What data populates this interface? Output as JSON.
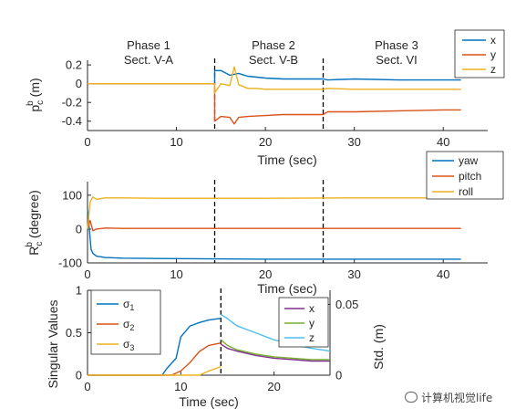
{
  "colors": {
    "blue": "#0072BD",
    "orange": "#D95319",
    "yellow": "#EDB120",
    "purple": "#7E2F8E",
    "green": "#77AC30",
    "cyan": "#4DBEEE"
  },
  "watermark": "计算机视觉life",
  "chart_data": [
    {
      "type": "line",
      "ylabel_main": "p",
      "ylabel_sub": "c",
      "ylabel_sup": "b",
      "ylabel_unit": "(m)",
      "xlabel": "Time (sec)",
      "xlim": [
        0,
        45
      ],
      "ylim": [
        -0.5,
        0.25
      ],
      "xticks": [
        "0",
        "10",
        "20",
        "30",
        "40"
      ],
      "yticks": [
        "0.2",
        "0",
        "-0.2",
        "-0.4"
      ],
      "phases": [
        {
          "name": "Phase 1",
          "sect": "Sect. V-A"
        },
        {
          "name": "Phase 2",
          "sect": "Sect. V-B"
        },
        {
          "name": "Phase 3",
          "sect": "Sect. VI"
        }
      ],
      "vlines": [
        14.3,
        26.5
      ],
      "legend": "top-right",
      "series": [
        {
          "name": "x",
          "color": "#0072BD",
          "x": [
            0,
            14.3,
            14.3,
            15,
            16,
            17,
            18,
            19,
            20,
            22,
            24,
            26.5,
            27,
            30,
            35,
            40,
            42
          ],
          "y": [
            0,
            0,
            0.14,
            0.14,
            0.09,
            0.11,
            0.08,
            0.07,
            0.06,
            0.05,
            0.05,
            0.05,
            0.04,
            0.05,
            0.04,
            0.04,
            0.04
          ]
        },
        {
          "name": "y",
          "color": "#D95319",
          "x": [
            0,
            14.3,
            14.3,
            15,
            16,
            16.5,
            17,
            18,
            20,
            22,
            24,
            26.5,
            27,
            30,
            35,
            40,
            42
          ],
          "y": [
            0,
            0,
            -0.4,
            -0.35,
            -0.36,
            -0.43,
            -0.36,
            -0.35,
            -0.34,
            -0.33,
            -0.33,
            -0.33,
            -0.3,
            -0.3,
            -0.29,
            -0.28,
            -0.28
          ]
        },
        {
          "name": "z",
          "color": "#EDB120",
          "x": [
            0,
            14.3,
            14.3,
            15,
            16,
            16.5,
            17,
            18,
            19,
            20,
            22,
            24,
            26.5,
            27,
            30,
            35,
            40,
            42
          ],
          "y": [
            0,
            0,
            -0.1,
            0.0,
            -0.02,
            0.18,
            -0.01,
            -0.05,
            -0.05,
            -0.06,
            -0.06,
            -0.06,
            -0.06,
            -0.05,
            -0.06,
            -0.06,
            -0.06,
            -0.06
          ]
        }
      ]
    },
    {
      "type": "line",
      "ylabel_main": "R",
      "ylabel_sub": "c",
      "ylabel_sup": "b",
      "ylabel_unit": "(degree)",
      "xlabel": "Time (sec)",
      "xlim": [
        0,
        45
      ],
      "ylim": [
        -100,
        140
      ],
      "xticks": [
        "0",
        "10",
        "20",
        "30",
        "40"
      ],
      "yticks": [
        "100",
        "0",
        "-100"
      ],
      "vlines": [
        14.3,
        26.5
      ],
      "legend": "top-right",
      "series": [
        {
          "name": "yaw",
          "color": "#0072BD",
          "x": [
            0,
            0.2,
            0.4,
            0.6,
            1,
            2,
            4,
            8,
            14,
            20,
            30,
            42
          ],
          "y": [
            60,
            0,
            -60,
            -72,
            -80,
            -84,
            -86,
            -87,
            -88,
            -89,
            -89,
            -89
          ]
        },
        {
          "name": "pitch",
          "color": "#D95319",
          "x": [
            0,
            0.3,
            0.6,
            1,
            2,
            4,
            8,
            14,
            20,
            30,
            42
          ],
          "y": [
            0,
            25,
            -5,
            0,
            3,
            2,
            2,
            2,
            2,
            2,
            2
          ]
        },
        {
          "name": "roll",
          "color": "#EDB120",
          "x": [
            0,
            0.3,
            0.6,
            1,
            2,
            4,
            8,
            14,
            20,
            30,
            42
          ],
          "y": [
            0,
            80,
            95,
            88,
            92,
            92,
            91,
            91,
            91,
            92,
            92
          ]
        }
      ]
    },
    {
      "type": "line",
      "ylabel": "Singular Values",
      "ylabel_right": "Std. (m)",
      "xlabel": "Time (sec)",
      "xlim": [
        0,
        26
      ],
      "ylim": [
        0,
        1
      ],
      "ylim_right": [
        0,
        0.06
      ],
      "xticks": [
        "0",
        "10",
        "20"
      ],
      "yticks": [
        "1",
        "0.5",
        "0"
      ],
      "yticks_right": [
        "0.05",
        "0"
      ],
      "vlines": [
        14.3
      ],
      "legend_left": "top-left",
      "legend_right": "top-right",
      "series": [
        {
          "name": "σ1",
          "label_main": "σ",
          "label_sub": "1",
          "color": "#0072BD",
          "axis": "left",
          "x": [
            0,
            8,
            8.5,
            9.5,
            10,
            11,
            12,
            13,
            14.3
          ],
          "y": [
            0,
            0,
            0.08,
            0.2,
            0.45,
            0.58,
            0.62,
            0.65,
            0.67
          ]
        },
        {
          "name": "σ2",
          "label_main": "σ",
          "label_sub": "2",
          "color": "#D95319",
          "axis": "left",
          "x": [
            0,
            9,
            10,
            11,
            12,
            13,
            14.3
          ],
          "y": [
            0,
            0,
            0.05,
            0.15,
            0.28,
            0.35,
            0.38
          ]
        },
        {
          "name": "σ3",
          "label_main": "σ",
          "label_sub": "3",
          "color": "#EDB120",
          "axis": "left",
          "x": [
            0,
            12,
            13,
            14.3
          ],
          "y": [
            0,
            0,
            0.05,
            0.1
          ]
        },
        {
          "name": "x",
          "color": "#7E2F8E",
          "axis": "right",
          "x": [
            14.3,
            15,
            16,
            18,
            20,
            22,
            24,
            26
          ],
          "y": [
            0.022,
            0.019,
            0.017,
            0.014,
            0.012,
            0.011,
            0.01,
            0.01
          ]
        },
        {
          "name": "y",
          "color": "#77AC30",
          "axis": "right",
          "x": [
            14.3,
            15,
            16,
            18,
            20,
            22,
            24,
            26
          ],
          "y": [
            0.025,
            0.021,
            0.018,
            0.015,
            0.013,
            0.012,
            0.011,
            0.011
          ]
        },
        {
          "name": "z",
          "color": "#4DBEEE",
          "axis": "right",
          "x": [
            14.3,
            15,
            16,
            18,
            20,
            22,
            24,
            26
          ],
          "y": [
            0.043,
            0.04,
            0.035,
            0.03,
            0.025,
            0.022,
            0.019,
            0.017
          ]
        }
      ]
    }
  ]
}
